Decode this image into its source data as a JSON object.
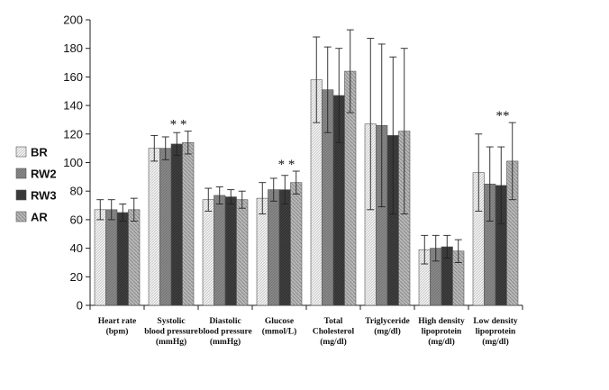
{
  "chart_data": {
    "type": "bar",
    "title": "",
    "xlabel": "",
    "ylabel": "",
    "ylim": [
      0,
      200
    ],
    "yticks": [
      "0",
      "20",
      "40",
      "60",
      "80",
      "100",
      "120",
      "140",
      "160",
      "180",
      "200"
    ],
    "grid": false,
    "legend_position": "left",
    "categories": [
      {
        "label": [
          "Heart rate",
          "(bpm)"
        ],
        "annotation": ""
      },
      {
        "label": [
          "Systolic",
          "blood pressure",
          "(mmHg)"
        ],
        "annotation": "* *"
      },
      {
        "label": [
          "Diastolic",
          "blood pressure",
          "(mmHg)"
        ],
        "annotation": ""
      },
      {
        "label": [
          "Glucose",
          "(mmol/L)"
        ],
        "annotation": "* *"
      },
      {
        "label": [
          "Total",
          "Cholesterol",
          "(mg/dl)"
        ],
        "annotation": ""
      },
      {
        "label": [
          "Triglyceride",
          "(mg/dl)"
        ],
        "annotation": ""
      },
      {
        "label": [
          "High density",
          "lipoprotein",
          "(mg/dl)"
        ],
        "annotation": ""
      },
      {
        "label": [
          "Low density",
          "lipoprotein",
          "(mg/dl)"
        ],
        "annotation": "**"
      }
    ],
    "series": [
      {
        "name": "BR",
        "color": "#e3e3e3",
        "values": [
          67,
          110,
          74,
          75,
          158,
          127,
          39,
          93
        ],
        "errors": [
          7,
          9,
          8,
          11,
          30,
          60,
          10,
          27
        ]
      },
      {
        "name": "RW2",
        "color": "#8c8c8c",
        "values": [
          67,
          110,
          77,
          81,
          151,
          126,
          40,
          85
        ],
        "errors": [
          7,
          8,
          6,
          8,
          30,
          57,
          9,
          26
        ]
      },
      {
        "name": "RW3",
        "color": "#3d3d3d",
        "values": [
          65,
          113,
          76,
          81,
          147,
          119,
          41,
          84
        ],
        "errors": [
          6,
          8,
          5,
          10,
          33,
          55,
          8,
          27
        ]
      },
      {
        "name": "AR",
        "color": "#a6a6a6",
        "values": [
          67,
          114,
          74,
          86,
          164,
          122,
          38,
          101
        ],
        "errors": [
          8,
          8,
          6,
          8,
          29,
          58,
          8,
          27
        ]
      }
    ]
  }
}
